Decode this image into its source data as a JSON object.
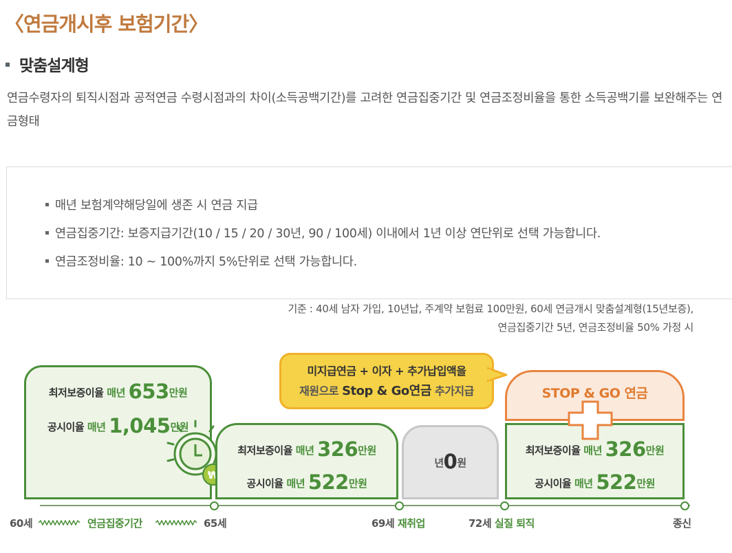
{
  "title": "〈연금개시후 보험기간〉",
  "subhead": "맞춤설계형",
  "description": "연금수령자의 퇴직시점과 공적연금 수령시점과의 차이(소득공백기간)를 고려한 연금집중기간 및 연금조정비율을 통한 소득공백기를 보완해주는 연금형태",
  "bullets": [
    "매년 보험계약해당일에 생존 시 연금 지급",
    "연금집중기간: 보증지급기간(10 / 15 / 20 / 30년, 90 / 100세) 이내에서 1년 이상 연단위로 선택 가능합니다.",
    "연금조정비율: 10 ~ 100%까지 5%단위로 선택 가능합니다."
  ],
  "basis": {
    "line1": "기준 : 40세 남자 가입, 10년납, 주계약 보험료 100만원, 60세 연금개시 맞춤설계형(15년보증),",
    "line2": "연금집중기간 5년, 연금조정비율 50% 가정 시"
  },
  "diagram": {
    "panel1": {
      "row1_label": "최저보증이율",
      "row1_per": "매년",
      "row1_value": "653",
      "row1_unit": "만원",
      "row2_label": "공시이율",
      "row2_per": "매년",
      "row2_value": "1,045",
      "row2_unit": "만원"
    },
    "panel2": {
      "row1_label": "최저보증이율",
      "row1_per": "매년",
      "row1_value": "326",
      "row1_unit": "만원",
      "row2_label": "공시이율",
      "row2_per": "매년",
      "row2_value": "522",
      "row2_unit": "만원"
    },
    "panel3": {
      "prefix": "년",
      "value": "0",
      "unit": "원"
    },
    "panel4": {
      "row1_label": "최저보증이율",
      "row1_per": "매년",
      "row1_value": "326",
      "row1_unit": "만원",
      "row2_label": "공시이율",
      "row2_per": "매년",
      "row2_value": "522",
      "row2_unit": "만원"
    },
    "callout": {
      "line1": "미지급연금 + 이자 + 추가납입액을",
      "line2_a": "재원으로",
      "line2_b": "Stop & Go연금",
      "line2_c": "추가지급"
    },
    "stopgo_title": "STOP & GO 연금",
    "won_symbol": "₩",
    "timeline": {
      "t60": "60세",
      "concentration": "연금집중기간",
      "t65": "65세",
      "t69": "69세",
      "t69_label": "재취업",
      "t72": "72세",
      "t72_label": "실질 퇴직",
      "end": "종신"
    },
    "colors": {
      "green": "#4b8f3a",
      "orange": "#e8843e",
      "yellow": "#f6d248",
      "title": "#c07a3e"
    }
  }
}
